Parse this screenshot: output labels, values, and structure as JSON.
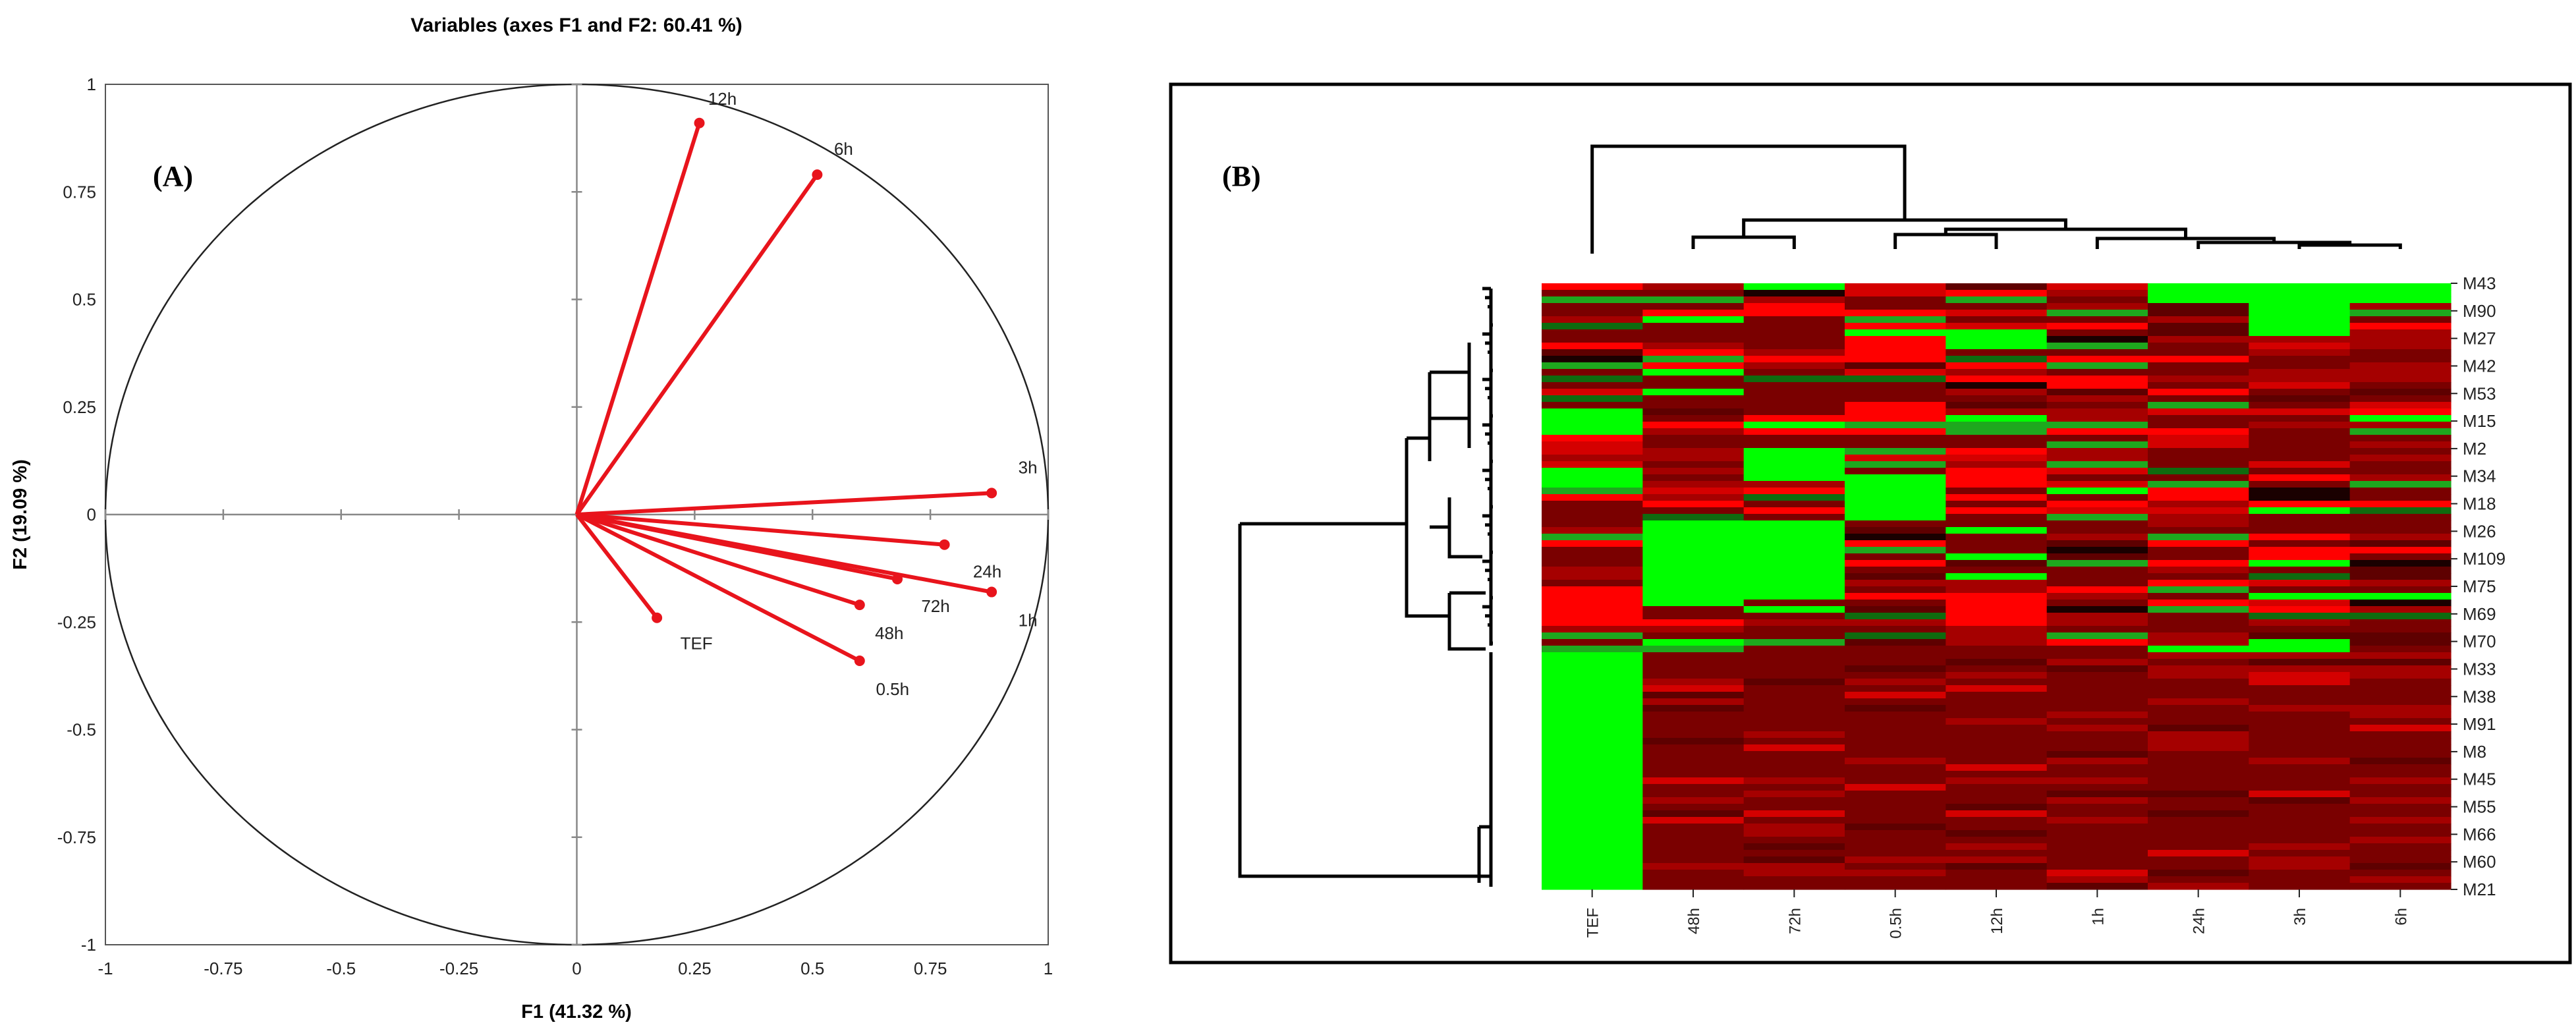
{
  "chart_data": [
    {
      "type": "scatter",
      "subtype": "pca-correlation-circle",
      "title": "Variables (axes F1 and F2: 60.41 %)",
      "panel_label": "(A)",
      "xlabel": "F1 (41.32 %)",
      "ylabel": "F2 (19.09 %)",
      "xlim": [
        -1,
        1
      ],
      "ylim": [
        -1,
        1
      ],
      "x_ticks": [
        "-1",
        "-0.75",
        "-0.5",
        "-0.25",
        "0",
        "0.25",
        "0.5",
        "0.75",
        "1"
      ],
      "y_ticks": [
        "1",
        "0.75",
        "0.5",
        "0.25",
        "0",
        "-0.25",
        "-0.5",
        "-0.75",
        "-1"
      ],
      "vector_color": "#e8141c",
      "vectors": [
        {
          "name": "12h",
          "x": 0.26,
          "y": 0.91
        },
        {
          "name": "6h",
          "x": 0.51,
          "y": 0.79
        },
        {
          "name": "3h",
          "x": 0.88,
          "y": 0.05
        },
        {
          "name": "24h",
          "x": 0.78,
          "y": -0.07
        },
        {
          "name": "1h",
          "x": 0.88,
          "y": -0.18
        },
        {
          "name": "72h",
          "x": 0.68,
          "y": -0.15
        },
        {
          "name": "48h",
          "x": 0.6,
          "y": -0.21
        },
        {
          "name": "0.5h",
          "x": 0.6,
          "y": -0.34
        },
        {
          "name": "TEF",
          "x": 0.17,
          "y": -0.24
        }
      ]
    },
    {
      "type": "heatmap",
      "panel_label": "(B)",
      "columns": [
        "TEF",
        "48h",
        "72h",
        "0.5h",
        "12h",
        "1h",
        "24h",
        "3h",
        "6h"
      ],
      "row_labels": [
        "M43",
        "M90",
        "M27",
        "M42",
        "M53",
        "M15",
        "M2",
        "M34",
        "M18",
        "M26",
        "M109",
        "M75",
        "M69",
        "M70",
        "M33",
        "M38",
        "M91",
        "M8",
        "M45",
        "M55",
        "M66",
        "M60",
        "M21"
      ],
      "color_scale": {
        "high": "#ff0000",
        "mid": "#7a0000",
        "low": "#00ff00",
        "black": "#000000"
      },
      "column_dendrogram": "((TEF),((48h,72h),((0.5h,12h),(1h,(24h,(3h,6h))))))",
      "row_dendrogram": "two main clusters: upper block (M43–M70) and lower block (M33–M21)"
    }
  ]
}
